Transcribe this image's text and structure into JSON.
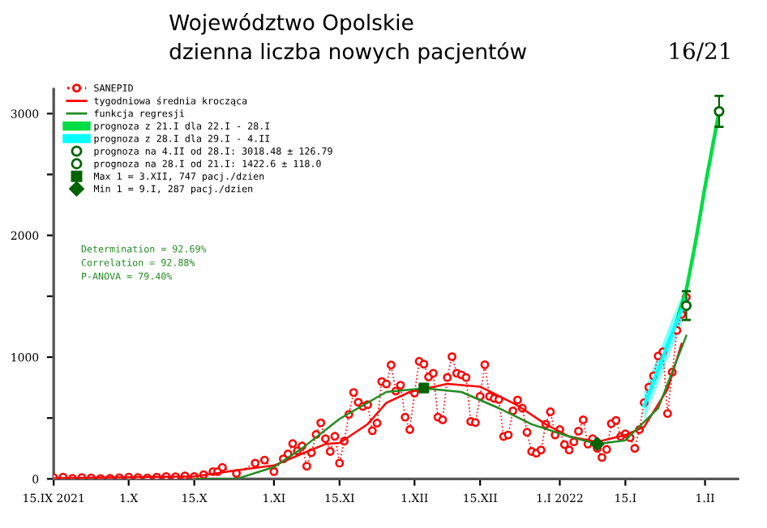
{
  "chart_data": {
    "type": "line",
    "title": "Województwo Opolskie",
    "subtitle": "dzienna liczba nowych pacjentów",
    "annotations": [
      "Determination = 92.69%",
      "Correlation = 92.88%",
      "P-ANOVA = 79.40%",
      "16/21"
    ],
    "xlim": [
      "2021-09-15",
      "2022-02-08"
    ],
    "xticks": [
      {
        "value": "2021-09-15",
        "label": "15.IX 2021"
      },
      {
        "value": "2021-10-01",
        "label": "1.X"
      },
      {
        "value": "2021-10-15",
        "label": "15.X"
      },
      {
        "value": "2021-11-01",
        "label": "1.XI"
      },
      {
        "value": "2021-11-15",
        "label": "15.XI"
      },
      {
        "value": "2021-12-01",
        "label": "1.XII"
      },
      {
        "value": "2021-12-15",
        "label": "15.XII"
      },
      {
        "value": "2022-01-01",
        "label": "1.I 2022"
      },
      {
        "value": "2022-01-15",
        "label": "15.I"
      },
      {
        "value": "2022-02-01",
        "label": "1.II"
      }
    ],
    "ylim": [
      0,
      3200
    ],
    "yticks": [
      0,
      {
        "value": 500,
        "label": null
      },
      1000,
      {
        "value": 1500,
        "label": null
      },
      2000,
      {
        "value": 2500,
        "label": null
      },
      3000
    ],
    "grid": false,
    "legend": "top left",
    "series": [
      {
        "name": "SANEPID",
        "color": "#ff0000",
        "marker": "circle",
        "line_style": "dotted",
        "x": [
          "2021-09-15",
          "2021-09-17",
          "2021-09-19",
          "2021-09-21",
          "2021-09-23",
          "2021-09-25",
          "2021-09-27",
          "2021-09-29",
          "2021-10-01",
          "2021-10-03",
          "2021-10-05",
          "2021-10-07",
          "2021-10-09",
          "2021-10-11",
          "2021-10-13",
          "2021-10-15",
          "2021-10-17",
          "2021-10-19",
          "2021-10-20",
          "2021-10-21",
          "2021-10-24",
          "2021-10-28",
          "2021-10-30",
          "2021-11-01",
          "2021-11-03",
          "2021-11-04",
          "2021-11-05",
          "2021-11-06",
          "2021-11-07",
          "2021-11-08",
          "2021-11-09",
          "2021-11-10",
          "2021-11-11",
          "2021-11-12",
          "2021-11-13",
          "2021-11-14",
          "2021-11-15",
          "2021-11-16",
          "2021-11-17",
          "2021-11-18",
          "2021-11-19",
          "2021-11-20",
          "2021-11-21",
          "2021-11-22",
          "2021-11-23",
          "2021-11-24",
          "2021-11-25",
          "2021-11-26",
          "2021-11-27",
          "2021-11-28",
          "2021-11-29",
          "2021-11-30",
          "2021-12-01",
          "2021-12-02",
          "2021-12-03",
          "2021-12-04",
          "2021-12-05",
          "2021-12-06",
          "2021-12-07",
          "2021-12-08",
          "2021-12-09",
          "2021-12-10",
          "2021-12-11",
          "2021-12-12",
          "2021-12-13",
          "2021-12-14",
          "2021-12-15",
          "2021-12-16",
          "2021-12-17",
          "2021-12-18",
          "2021-12-19",
          "2021-12-20",
          "2021-12-21",
          "2021-12-22",
          "2021-12-23",
          "2021-12-24",
          "2021-12-25",
          "2021-12-26",
          "2021-12-27",
          "2021-12-28",
          "2021-12-29",
          "2021-12-30",
          "2021-12-31",
          "2022-01-01",
          "2022-01-02",
          "2022-01-03",
          "2022-01-04",
          "2022-01-05",
          "2022-01-06",
          "2022-01-07",
          "2022-01-08",
          "2022-01-09",
          "2022-01-10",
          "2022-01-11",
          "2022-01-12",
          "2022-01-13",
          "2022-01-14",
          "2022-01-15",
          "2022-01-16",
          "2022-01-17",
          "2022-01-18",
          "2022-01-19",
          "2022-01-20",
          "2022-01-21",
          "2022-01-22",
          "2022-01-23",
          "2022-01-24",
          "2022-01-25",
          "2022-01-26",
          "2022-01-27",
          "2022-01-28"
        ],
        "values": [
          10,
          15,
          5,
          12,
          8,
          3,
          5,
          10,
          15,
          12,
          8,
          15,
          20,
          18,
          25,
          20,
          35,
          60,
          60,
          95,
          45,
          130,
          155,
          60,
          165,
          205,
          290,
          230,
          270,
          105,
          215,
          365,
          460,
          330,
          225,
          350,
          130,
          310,
          530,
          710,
          630,
          595,
          610,
          396,
          458,
          800,
          780,
          935,
          722,
          770,
          507,
          405,
          705,
          965,
          943,
          837,
          868,
          507,
          485,
          833,
          1004,
          868,
          855,
          833,
          471,
          463,
          678,
          938,
          678,
          661,
          652,
          348,
          361,
          559,
          648,
          581,
          383,
          225,
          211,
          238,
          449,
          551,
          361,
          405,
          282,
          238,
          304,
          392,
          485,
          286,
          330,
          251,
          176,
          242,
          454,
          480,
          348,
          370,
          339,
          251,
          405,
          626,
          753,
          846,
          1009,
          1044,
          537,
          877,
          1220,
          1352,
          1493
        ]
      },
      {
        "name": "tygodniowa średnia krocząca",
        "type": "line",
        "color": "#ff0000",
        "x": [
          "2021-09-15",
          "2021-10-15",
          "2021-10-25",
          "2021-11-01",
          "2021-11-07",
          "2021-11-12",
          "2021-11-15",
          "2021-11-21",
          "2021-11-25",
          "2021-11-30",
          "2021-12-08",
          "2021-12-15",
          "2021-12-23",
          "2021-12-29",
          "2022-01-03",
          "2022-01-09",
          "2022-01-15",
          "2022-01-19",
          "2022-01-24",
          "2022-01-27"
        ],
        "values": [
          5,
          20,
          75,
          110,
          207,
          286,
          295,
          450,
          625,
          714,
          780,
          758,
          603,
          449,
          348,
          304,
          361,
          427,
          736,
          1110
        ]
      },
      {
        "name": "funkcja regresji",
        "type": "line",
        "color": "#228b22",
        "x": [
          "2021-10-15",
          "2021-10-24",
          "2021-11-01",
          "2021-11-07",
          "2021-11-15",
          "2021-11-25",
          "2021-12-03",
          "2021-12-11",
          "2021-12-19",
          "2021-12-26",
          "2022-01-03",
          "2022-01-09",
          "2022-01-15",
          "2022-01-22",
          "2022-01-28"
        ],
        "values": [
          0,
          0,
          97,
          251,
          493,
          714,
          744,
          714,
          581,
          449,
          348,
          286,
          317,
          581,
          1176
        ]
      },
      {
        "name": "prognoza z 21.I dla 22.I - 28.I",
        "type": "line",
        "color": "#00dd44",
        "x": [
          "2022-01-26",
          "2022-01-28",
          "2022-01-30",
          "2022-02-01",
          "2022-02-04"
        ],
        "values": [
          1300,
          1550,
          1950,
          2400,
          3018
        ],
        "lower": [
          1250,
          1490,
          1880,
          2330,
          2940
        ],
        "upper": [
          1350,
          1610,
          2020,
          2470,
          3090
        ]
      },
      {
        "name": "prognoza z 28.I dla 29.I - 4.II",
        "type": "line",
        "color": "#00ffff",
        "x": [
          "2022-01-19",
          "2022-01-22",
          "2022-01-25",
          "2022-01-28"
        ],
        "values": [
          600,
          900,
          1200,
          1480
        ],
        "lower": [
          480,
          780,
          1080,
          1370
        ],
        "upper": [
          720,
          1020,
          1320,
          1590
        ]
      },
      {
        "name": "prognoza na 4.II od 28.I: 3018.48 ± 126.79",
        "type": "scatter",
        "color": "#006400",
        "marker": "circle",
        "x": [
          "2022-02-04"
        ],
        "values": [
          3018.48
        ],
        "errors": [
          126.79
        ]
      },
      {
        "name": "prognoza na 28.I od 21.I: 1422.6 ± 118.0",
        "type": "scatter",
        "color": "#006400",
        "marker": "circle",
        "x": [
          "2022-01-28"
        ],
        "values": [
          1422.6
        ],
        "errors": [
          118.0
        ]
      },
      {
        "name": "Max 1 = 3.XII, 747 pacj./dzien",
        "type": "scatter",
        "color": "#006400",
        "marker": "square",
        "x": [
          "2021-12-03"
        ],
        "values": [
          747
        ]
      },
      {
        "name": "Min 1 = 9.I, 287 pacj./dzien",
        "type": "scatter",
        "color": "#006400",
        "marker": "diamond",
        "x": [
          "2022-01-09"
        ],
        "values": [
          287
        ]
      }
    ]
  }
}
